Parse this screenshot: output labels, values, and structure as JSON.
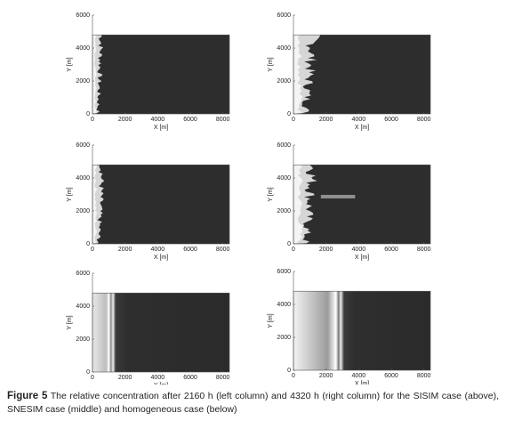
{
  "panels": [
    {
      "xlabel": "X [m]",
      "ylabel": "Y [m]",
      "xlim": [
        0,
        8400
      ],
      "ylim": [
        0,
        6000
      ],
      "xticks": [
        0,
        2000,
        4000,
        6000,
        8000
      ],
      "yticks": [
        0,
        2000,
        4000,
        6000
      ]
    },
    {
      "xlabel": "X [m]",
      "ylabel": "Y [m]",
      "xlim": [
        0,
        8400
      ],
      "ylim": [
        0,
        6000
      ],
      "xticks": [
        0,
        2000,
        4000,
        6000,
        8000
      ],
      "yticks": [
        0,
        2000,
        4000,
        6000
      ]
    },
    {
      "xlabel": "X [m]",
      "ylabel": "Y [m]",
      "xlim": [
        0,
        8400
      ],
      "ylim": [
        0,
        6000
      ],
      "xticks": [
        0,
        2000,
        4000,
        6000,
        8000
      ],
      "yticks": [
        0,
        2000,
        4000,
        6000
      ]
    },
    {
      "xlabel": "X [m]",
      "ylabel": "Y [m]",
      "xlim": [
        0,
        8400
      ],
      "ylim": [
        0,
        6000
      ],
      "xticks": [
        0,
        2000,
        4000,
        6000,
        8000
      ],
      "yticks": [
        0,
        2000,
        4000,
        6000
      ]
    },
    {
      "xlabel": "X [m]",
      "ylabel": "Y [m]",
      "xlim": [
        0,
        8400
      ],
      "ylim": [
        0,
        6000
      ],
      "xticks": [
        0,
        2000,
        4000,
        6000,
        8000
      ],
      "yticks": [
        0,
        2000,
        4000,
        6000
      ]
    },
    {
      "xlabel": "X [m]",
      "ylabel": "Y [m]",
      "xlim": [
        0,
        8400
      ],
      "ylim": [
        0,
        6000
      ],
      "xticks": [
        0,
        2000,
        4000,
        6000,
        8000
      ],
      "yticks": [
        0,
        2000,
        4000,
        6000
      ]
    }
  ],
  "caption": {
    "label": "Figure 5",
    "text": "The relative concentration after 2160 h (left column) and 4320 h (right column) for the SISIM case (above), SNESIM case (middle) and homogeneous case (below)"
  }
}
